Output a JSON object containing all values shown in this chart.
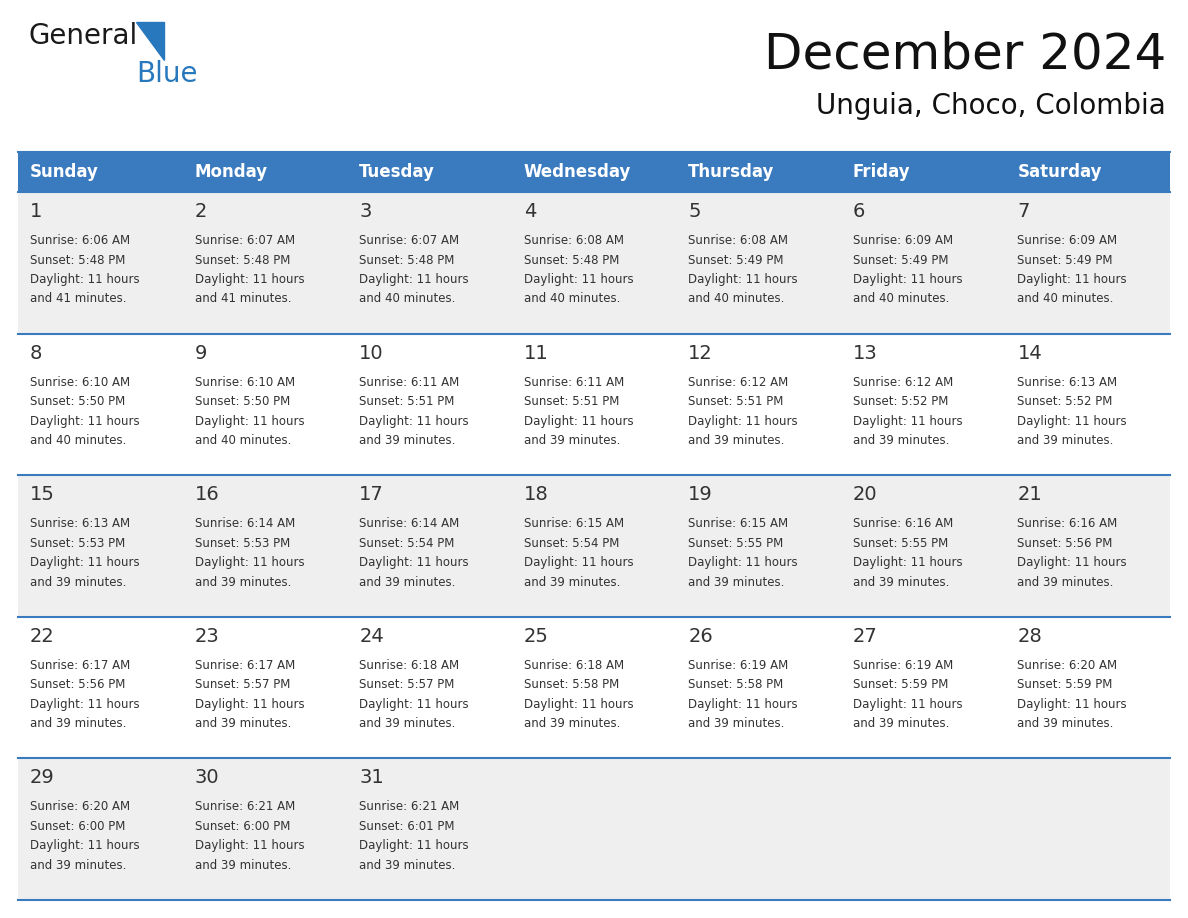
{
  "title": "December 2024",
  "subtitle": "Unguia, Choco, Colombia",
  "header_color": "#3a7abf",
  "header_text_color": "#ffffff",
  "cell_bg_even": "#efefef",
  "cell_bg_odd": "#ffffff",
  "line_color": "#3a7abf",
  "text_color": "#333333",
  "days_of_week": [
    "Sunday",
    "Monday",
    "Tuesday",
    "Wednesday",
    "Thursday",
    "Friday",
    "Saturday"
  ],
  "logo_general_color": "#1a1a1a",
  "logo_blue_color": "#2878be",
  "logo_triangle_color": "#2878be",
  "weeks": [
    [
      {
        "day": "1",
        "sunrise": "6:06 AM",
        "sunset": "5:48 PM",
        "dl1": "Daylight: 11 hours",
        "dl2": "and 41 minutes."
      },
      {
        "day": "2",
        "sunrise": "6:07 AM",
        "sunset": "5:48 PM",
        "dl1": "Daylight: 11 hours",
        "dl2": "and 41 minutes."
      },
      {
        "day": "3",
        "sunrise": "6:07 AM",
        "sunset": "5:48 PM",
        "dl1": "Daylight: 11 hours",
        "dl2": "and 40 minutes."
      },
      {
        "day": "4",
        "sunrise": "6:08 AM",
        "sunset": "5:48 PM",
        "dl1": "Daylight: 11 hours",
        "dl2": "and 40 minutes."
      },
      {
        "day": "5",
        "sunrise": "6:08 AM",
        "sunset": "5:49 PM",
        "dl1": "Daylight: 11 hours",
        "dl2": "and 40 minutes."
      },
      {
        "day": "6",
        "sunrise": "6:09 AM",
        "sunset": "5:49 PM",
        "dl1": "Daylight: 11 hours",
        "dl2": "and 40 minutes."
      },
      {
        "day": "7",
        "sunrise": "6:09 AM",
        "sunset": "5:49 PM",
        "dl1": "Daylight: 11 hours",
        "dl2": "and 40 minutes."
      }
    ],
    [
      {
        "day": "8",
        "sunrise": "6:10 AM",
        "sunset": "5:50 PM",
        "dl1": "Daylight: 11 hours",
        "dl2": "and 40 minutes."
      },
      {
        "day": "9",
        "sunrise": "6:10 AM",
        "sunset": "5:50 PM",
        "dl1": "Daylight: 11 hours",
        "dl2": "and 40 minutes."
      },
      {
        "day": "10",
        "sunrise": "6:11 AM",
        "sunset": "5:51 PM",
        "dl1": "Daylight: 11 hours",
        "dl2": "and 39 minutes."
      },
      {
        "day": "11",
        "sunrise": "6:11 AM",
        "sunset": "5:51 PM",
        "dl1": "Daylight: 11 hours",
        "dl2": "and 39 minutes."
      },
      {
        "day": "12",
        "sunrise": "6:12 AM",
        "sunset": "5:51 PM",
        "dl1": "Daylight: 11 hours",
        "dl2": "and 39 minutes."
      },
      {
        "day": "13",
        "sunrise": "6:12 AM",
        "sunset": "5:52 PM",
        "dl1": "Daylight: 11 hours",
        "dl2": "and 39 minutes."
      },
      {
        "day": "14",
        "sunrise": "6:13 AM",
        "sunset": "5:52 PM",
        "dl1": "Daylight: 11 hours",
        "dl2": "and 39 minutes."
      }
    ],
    [
      {
        "day": "15",
        "sunrise": "6:13 AM",
        "sunset": "5:53 PM",
        "dl1": "Daylight: 11 hours",
        "dl2": "and 39 minutes."
      },
      {
        "day": "16",
        "sunrise": "6:14 AM",
        "sunset": "5:53 PM",
        "dl1": "Daylight: 11 hours",
        "dl2": "and 39 minutes."
      },
      {
        "day": "17",
        "sunrise": "6:14 AM",
        "sunset": "5:54 PM",
        "dl1": "Daylight: 11 hours",
        "dl2": "and 39 minutes."
      },
      {
        "day": "18",
        "sunrise": "6:15 AM",
        "sunset": "5:54 PM",
        "dl1": "Daylight: 11 hours",
        "dl2": "and 39 minutes."
      },
      {
        "day": "19",
        "sunrise": "6:15 AM",
        "sunset": "5:55 PM",
        "dl1": "Daylight: 11 hours",
        "dl2": "and 39 minutes."
      },
      {
        "day": "20",
        "sunrise": "6:16 AM",
        "sunset": "5:55 PM",
        "dl1": "Daylight: 11 hours",
        "dl2": "and 39 minutes."
      },
      {
        "day": "21",
        "sunrise": "6:16 AM",
        "sunset": "5:56 PM",
        "dl1": "Daylight: 11 hours",
        "dl2": "and 39 minutes."
      }
    ],
    [
      {
        "day": "22",
        "sunrise": "6:17 AM",
        "sunset": "5:56 PM",
        "dl1": "Daylight: 11 hours",
        "dl2": "and 39 minutes."
      },
      {
        "day": "23",
        "sunrise": "6:17 AM",
        "sunset": "5:57 PM",
        "dl1": "Daylight: 11 hours",
        "dl2": "and 39 minutes."
      },
      {
        "day": "24",
        "sunrise": "6:18 AM",
        "sunset": "5:57 PM",
        "dl1": "Daylight: 11 hours",
        "dl2": "and 39 minutes."
      },
      {
        "day": "25",
        "sunrise": "6:18 AM",
        "sunset": "5:58 PM",
        "dl1": "Daylight: 11 hours",
        "dl2": "and 39 minutes."
      },
      {
        "day": "26",
        "sunrise": "6:19 AM",
        "sunset": "5:58 PM",
        "dl1": "Daylight: 11 hours",
        "dl2": "and 39 minutes."
      },
      {
        "day": "27",
        "sunrise": "6:19 AM",
        "sunset": "5:59 PM",
        "dl1": "Daylight: 11 hours",
        "dl2": "and 39 minutes."
      },
      {
        "day": "28",
        "sunrise": "6:20 AM",
        "sunset": "5:59 PM",
        "dl1": "Daylight: 11 hours",
        "dl2": "and 39 minutes."
      }
    ],
    [
      {
        "day": "29",
        "sunrise": "6:20 AM",
        "sunset": "6:00 PM",
        "dl1": "Daylight: 11 hours",
        "dl2": "and 39 minutes."
      },
      {
        "day": "30",
        "sunrise": "6:21 AM",
        "sunset": "6:00 PM",
        "dl1": "Daylight: 11 hours",
        "dl2": "and 39 minutes."
      },
      {
        "day": "31",
        "sunrise": "6:21 AM",
        "sunset": "6:01 PM",
        "dl1": "Daylight: 11 hours",
        "dl2": "and 39 minutes."
      },
      null,
      null,
      null,
      null
    ]
  ]
}
